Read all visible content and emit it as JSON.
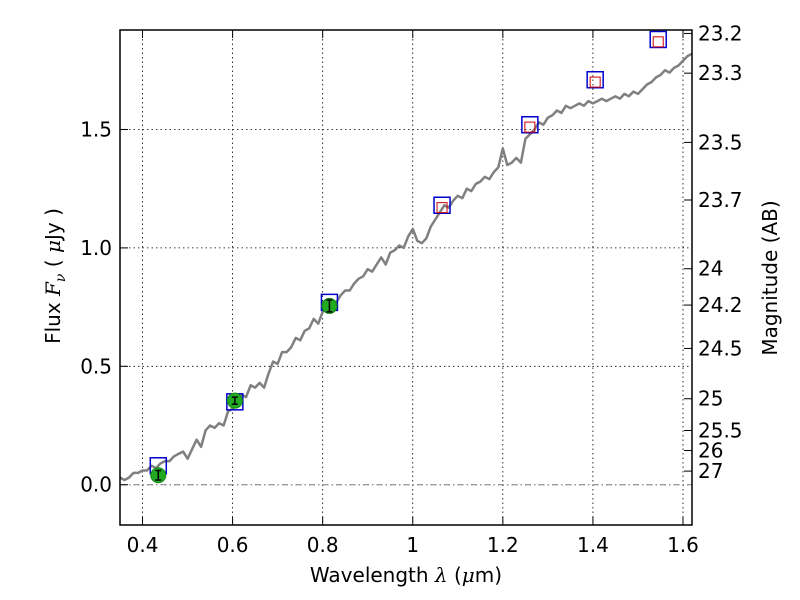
{
  "chart_data": {
    "type": "scatter",
    "xlabel": "Wavelength  λ (μm)",
    "ylabel": "Flux  Fν  ( μJy )",
    "y2label": "Magnitude (AB)",
    "xlim": [
      0.35,
      1.62
    ],
    "ylim": [
      -0.17,
      1.92
    ],
    "grid": true,
    "xticks": [
      {
        "value": 0.4,
        "label": "0.4"
      },
      {
        "value": 0.6,
        "label": "0.6"
      },
      {
        "value": 0.8,
        "label": "0.8"
      },
      {
        "value": 1.0,
        "label": "1"
      },
      {
        "value": 1.2,
        "label": "1.2"
      },
      {
        "value": 1.4,
        "label": "1.4"
      },
      {
        "value": 1.6,
        "label": "1.6"
      }
    ],
    "yticks": [
      {
        "value": 0.0,
        "label": "0.0"
      },
      {
        "value": 0.5,
        "label": "0.5"
      },
      {
        "value": 1.0,
        "label": "1.0"
      },
      {
        "value": 1.5,
        "label": "1.5"
      }
    ],
    "y2ticks": [
      {
        "mag": 23.2,
        "label": "23.2"
      },
      {
        "mag": 23.3,
        "label": "23.3"
      },
      {
        "mag": 23.5,
        "label": "23.5"
      },
      {
        "mag": 23.7,
        "label": "23.7"
      },
      {
        "mag": 24.0,
        "label": "24"
      },
      {
        "mag": 24.2,
        "label": "24.2"
      },
      {
        "mag": 24.5,
        "label": "24.5"
      },
      {
        "mag": 25.0,
        "label": "25"
      },
      {
        "mag": 25.5,
        "label": "25.5"
      },
      {
        "mag": 26.0,
        "label": "26"
      },
      {
        "mag": 27.0,
        "label": "27"
      }
    ],
    "series": [
      {
        "kind": "spectrum-line",
        "color": "#808080",
        "points": [
          [
            0.35,
            0.03
          ],
          [
            0.36,
            0.02
          ],
          [
            0.37,
            0.03
          ],
          [
            0.38,
            0.05
          ],
          [
            0.39,
            0.05
          ],
          [
            0.4,
            0.06
          ],
          [
            0.41,
            0.06
          ],
          [
            0.42,
            0.08
          ],
          [
            0.43,
            0.07
          ],
          [
            0.44,
            0.09
          ],
          [
            0.45,
            0.1
          ],
          [
            0.46,
            0.1
          ],
          [
            0.47,
            0.12
          ],
          [
            0.48,
            0.13
          ],
          [
            0.49,
            0.14
          ],
          [
            0.5,
            0.11
          ],
          [
            0.51,
            0.15
          ],
          [
            0.52,
            0.19
          ],
          [
            0.53,
            0.16
          ],
          [
            0.54,
            0.23
          ],
          [
            0.55,
            0.25
          ],
          [
            0.56,
            0.24
          ],
          [
            0.57,
            0.26
          ],
          [
            0.58,
            0.25
          ],
          [
            0.59,
            0.31
          ],
          [
            0.6,
            0.32
          ],
          [
            0.61,
            0.35
          ],
          [
            0.62,
            0.38
          ],
          [
            0.63,
            0.37
          ],
          [
            0.64,
            0.42
          ],
          [
            0.65,
            0.41
          ],
          [
            0.66,
            0.43
          ],
          [
            0.67,
            0.41
          ],
          [
            0.68,
            0.47
          ],
          [
            0.69,
            0.52
          ],
          [
            0.7,
            0.51
          ],
          [
            0.71,
            0.56
          ],
          [
            0.72,
            0.56
          ],
          [
            0.73,
            0.58
          ],
          [
            0.74,
            0.62
          ],
          [
            0.75,
            0.61
          ],
          [
            0.76,
            0.65
          ],
          [
            0.77,
            0.66
          ],
          [
            0.78,
            0.7
          ],
          [
            0.79,
            0.68
          ],
          [
            0.8,
            0.73
          ],
          [
            0.81,
            0.76
          ],
          [
            0.82,
            0.75
          ],
          [
            0.83,
            0.77
          ],
          [
            0.84,
            0.8
          ],
          [
            0.85,
            0.82
          ],
          [
            0.86,
            0.82
          ],
          [
            0.87,
            0.85
          ],
          [
            0.88,
            0.87
          ],
          [
            0.89,
            0.88
          ],
          [
            0.9,
            0.91
          ],
          [
            0.91,
            0.9
          ],
          [
            0.92,
            0.93
          ],
          [
            0.93,
            0.96
          ],
          [
            0.94,
            0.93
          ],
          [
            0.95,
            0.98
          ],
          [
            0.96,
            0.99
          ],
          [
            0.97,
            1.01
          ],
          [
            0.98,
            1.0
          ],
          [
            0.99,
            1.05
          ],
          [
            1.0,
            1.08
          ],
          [
            1.01,
            1.03
          ],
          [
            1.02,
            1.02
          ],
          [
            1.03,
            1.04
          ],
          [
            1.04,
            1.09
          ],
          [
            1.05,
            1.12
          ],
          [
            1.06,
            1.15
          ],
          [
            1.07,
            1.18
          ],
          [
            1.08,
            1.17
          ],
          [
            1.09,
            1.2
          ],
          [
            1.1,
            1.22
          ],
          [
            1.11,
            1.21
          ],
          [
            1.12,
            1.25
          ],
          [
            1.13,
            1.24
          ],
          [
            1.14,
            1.27
          ],
          [
            1.15,
            1.28
          ],
          [
            1.16,
            1.3
          ],
          [
            1.17,
            1.29
          ],
          [
            1.18,
            1.32
          ],
          [
            1.19,
            1.34
          ],
          [
            1.2,
            1.42
          ],
          [
            1.21,
            1.35
          ],
          [
            1.22,
            1.36
          ],
          [
            1.23,
            1.38
          ],
          [
            1.24,
            1.36
          ],
          [
            1.25,
            1.46
          ],
          [
            1.26,
            1.48
          ],
          [
            1.27,
            1.5
          ],
          [
            1.28,
            1.53
          ],
          [
            1.29,
            1.52
          ],
          [
            1.3,
            1.55
          ],
          [
            1.31,
            1.56
          ],
          [
            1.32,
            1.58
          ],
          [
            1.33,
            1.57
          ],
          [
            1.34,
            1.6
          ],
          [
            1.35,
            1.59
          ],
          [
            1.36,
            1.6
          ],
          [
            1.37,
            1.61
          ],
          [
            1.38,
            1.6
          ],
          [
            1.39,
            1.62
          ],
          [
            1.4,
            1.61
          ],
          [
            1.41,
            1.62
          ],
          [
            1.42,
            1.63
          ],
          [
            1.43,
            1.62
          ],
          [
            1.44,
            1.63
          ],
          [
            1.45,
            1.64
          ],
          [
            1.46,
            1.63
          ],
          [
            1.47,
            1.65
          ],
          [
            1.48,
            1.64
          ],
          [
            1.49,
            1.66
          ],
          [
            1.5,
            1.65
          ],
          [
            1.51,
            1.67
          ],
          [
            1.52,
            1.69
          ],
          [
            1.53,
            1.7
          ],
          [
            1.54,
            1.72
          ],
          [
            1.55,
            1.73
          ],
          [
            1.56,
            1.75
          ],
          [
            1.57,
            1.74
          ],
          [
            1.58,
            1.76
          ],
          [
            1.59,
            1.77
          ],
          [
            1.6,
            1.79
          ],
          [
            1.61,
            1.81
          ],
          [
            1.62,
            1.82
          ]
        ]
      },
      {
        "kind": "open-squares",
        "color": "#0000cc",
        "points": [
          [
            0.435,
            0.08
          ],
          [
            0.605,
            0.35
          ],
          [
            0.815,
            0.77
          ],
          [
            1.065,
            1.18
          ],
          [
            1.26,
            1.52
          ],
          [
            1.405,
            1.71
          ],
          [
            1.545,
            1.88
          ]
        ]
      },
      {
        "kind": "small-red-squares",
        "color": "#cc0000",
        "points": [
          [
            1.065,
            1.17
          ],
          [
            1.26,
            1.51
          ],
          [
            1.405,
            1.7
          ],
          [
            1.545,
            1.87
          ]
        ]
      },
      {
        "kind": "filled-circles-with-errorbars",
        "color": "#22aa22",
        "points": [
          {
            "x": 0.435,
            "y": 0.04,
            "err": 0.02
          },
          {
            "x": 0.605,
            "y": 0.355,
            "err": 0.015
          },
          {
            "x": 0.815,
            "y": 0.755,
            "err": 0.025
          }
        ]
      }
    ],
    "reference_line": {
      "y": 0.0,
      "style": "dash-dot",
      "color": "#808080"
    }
  }
}
